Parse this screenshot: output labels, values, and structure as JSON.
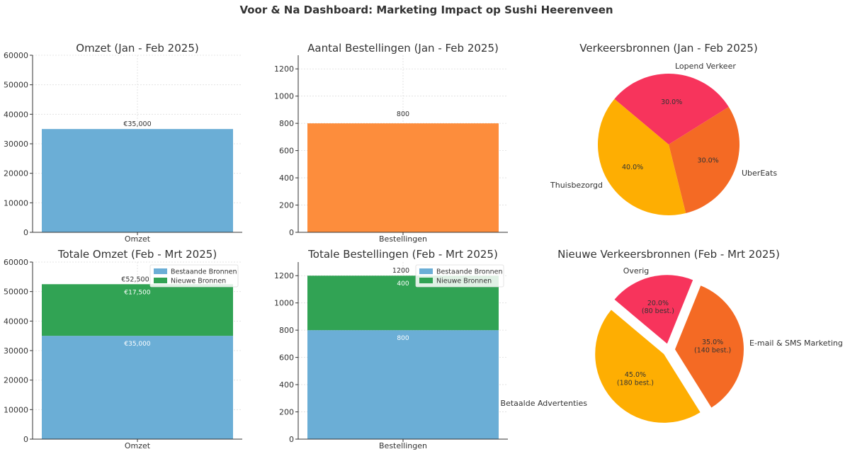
{
  "page": {
    "title": "Voor & Na Dashboard: Marketing Impact op Sushi Heerenveen"
  },
  "colors": {
    "existing": "#6baed6",
    "new": "#31a354",
    "orders_before": "#fd8d3c",
    "pink": "#f7345c",
    "orange": "#f46a24",
    "amber": "#feae02",
    "grid": "#dddddd",
    "axis": "#333333"
  },
  "chart_data": [
    {
      "id": "omzet-before",
      "type": "bar",
      "title": "Omzet (Jan - Feb 2025)",
      "categories": [
        "Omzet"
      ],
      "values": [
        35000
      ],
      "data_labels": [
        "€35,000"
      ],
      "ylim": [
        0,
        60000
      ],
      "yticks": [
        0,
        10000,
        20000,
        30000,
        40000,
        50000,
        60000
      ],
      "grid": true
    },
    {
      "id": "orders-before",
      "type": "bar",
      "title": "Aantal Bestellingen (Jan - Feb 2025)",
      "categories": [
        "Bestellingen"
      ],
      "values": [
        800
      ],
      "data_labels": [
        "800"
      ],
      "ylim": [
        0,
        1300
      ],
      "yticks": [
        0,
        200,
        400,
        600,
        800,
        1000,
        1200
      ],
      "grid": true
    },
    {
      "id": "traffic-before",
      "type": "pie",
      "title": "Verkeersbronnen (Jan - Feb 2025)",
      "labels": [
        "Lopend Verkeer",
        "UberEats",
        "Thuisbezorgd"
      ],
      "values": [
        30,
        30,
        40
      ],
      "pct_labels": [
        "30.0%",
        "30.0%",
        "40.0%"
      ],
      "color_keys": [
        "pink",
        "orange",
        "amber"
      ]
    },
    {
      "id": "omzet-after",
      "type": "bar",
      "stacked": true,
      "title": "Totale Omzet (Feb - Mrt 2025)",
      "categories": [
        "Omzet"
      ],
      "series": [
        {
          "name": "Bestaande Bronnen",
          "values": [
            35000
          ],
          "data_labels": [
            "€35,000"
          ]
        },
        {
          "name": "Nieuwe Bronnen",
          "values": [
            17500
          ],
          "data_labels": [
            "€17,500"
          ]
        }
      ],
      "total_labels": [
        "€52,500"
      ],
      "ylim": [
        0,
        60000
      ],
      "yticks": [
        0,
        10000,
        20000,
        30000,
        40000,
        50000,
        60000
      ],
      "legend": "top-right",
      "grid": true
    },
    {
      "id": "orders-after",
      "type": "bar",
      "stacked": true,
      "title": "Totale Bestellingen (Feb - Mrt 2025)",
      "categories": [
        "Bestellingen"
      ],
      "series": [
        {
          "name": "Bestaande Bronnen",
          "values": [
            800
          ],
          "data_labels": [
            "800"
          ]
        },
        {
          "name": "Nieuwe Bronnen",
          "values": [
            400
          ],
          "data_labels": [
            "400"
          ]
        }
      ],
      "total_labels": [
        "1200"
      ],
      "ylim": [
        0,
        1300
      ],
      "yticks": [
        0,
        200,
        400,
        600,
        800,
        1000,
        1200
      ],
      "legend": "top-right",
      "grid": true
    },
    {
      "id": "traffic-after",
      "type": "pie",
      "title": "Nieuwe Verkeersbronnen (Feb - Mrt 2025)",
      "labels": [
        "Overig",
        "E-mail & SMS Marketing",
        "Betaalde Advertenties"
      ],
      "values": [
        20,
        35,
        45
      ],
      "pct_labels": [
        "20.0%\n(80 best.)",
        "35.0%\n(140 best.)",
        "45.0%\n(180 best.)"
      ],
      "color_keys": [
        "pink",
        "orange",
        "amber"
      ],
      "exploded": true
    }
  ]
}
